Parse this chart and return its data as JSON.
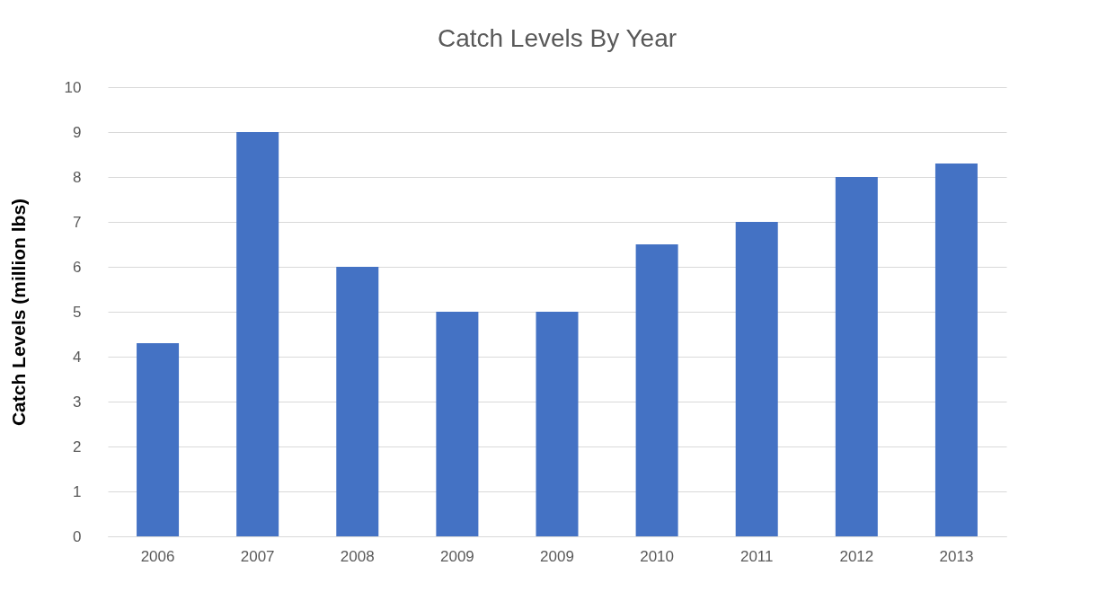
{
  "chart_data": {
    "type": "bar",
    "title": "Catch Levels By Year",
    "ylabel": "Catch Levels (million lbs)",
    "categories": [
      "2006",
      "2007",
      "2008",
      "2009",
      "2009",
      "2010",
      "2011",
      "2012",
      "2013"
    ],
    "values": [
      4.3,
      9,
      6,
      5,
      5,
      6.5,
      7,
      8,
      8.3
    ],
    "color": "#4472c4",
    "ylim": [
      0,
      10
    ],
    "yticks": [
      0,
      1,
      2,
      3,
      4,
      5,
      6,
      7,
      8,
      9,
      10
    ],
    "grid": "y"
  }
}
